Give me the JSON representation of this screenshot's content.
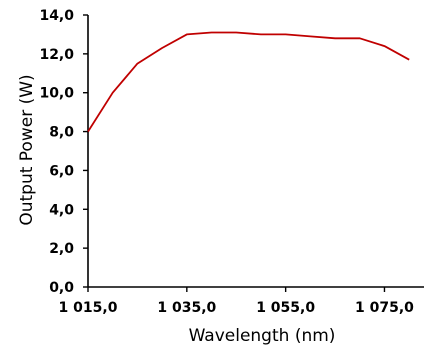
{
  "chart_data": {
    "type": "line",
    "xlabel": "Wavelength (nm)",
    "ylabel": "Output Power (W)",
    "xlim": [
      1015,
      1083
    ],
    "ylim": [
      0,
      14
    ],
    "x_ticks": [
      {
        "value": 1015,
        "label": "1 015,0"
      },
      {
        "value": 1035,
        "label": "1 035,0"
      },
      {
        "value": 1055,
        "label": "1 055,0"
      },
      {
        "value": 1075,
        "label": "1 075,0"
      }
    ],
    "y_ticks": [
      {
        "value": 0,
        "label": "0,0"
      },
      {
        "value": 2,
        "label": "2,0"
      },
      {
        "value": 4,
        "label": "4,0"
      },
      {
        "value": 6,
        "label": "6,0"
      },
      {
        "value": 8,
        "label": "8,0"
      },
      {
        "value": 10,
        "label": "10,0"
      },
      {
        "value": 12,
        "label": "12,0"
      },
      {
        "value": 14,
        "label": "14,0"
      }
    ],
    "grid": false,
    "series": [
      {
        "color": "#c00000",
        "x": [
          1015,
          1020,
          1025,
          1030,
          1035,
          1040,
          1045,
          1050,
          1055,
          1060,
          1065,
          1070,
          1075,
          1080
        ],
        "y": [
          8.0,
          10.0,
          11.5,
          12.3,
          13.0,
          13.1,
          13.1,
          13.0,
          13.0,
          12.9,
          12.8,
          12.8,
          12.4,
          11.7
        ]
      }
    ]
  }
}
